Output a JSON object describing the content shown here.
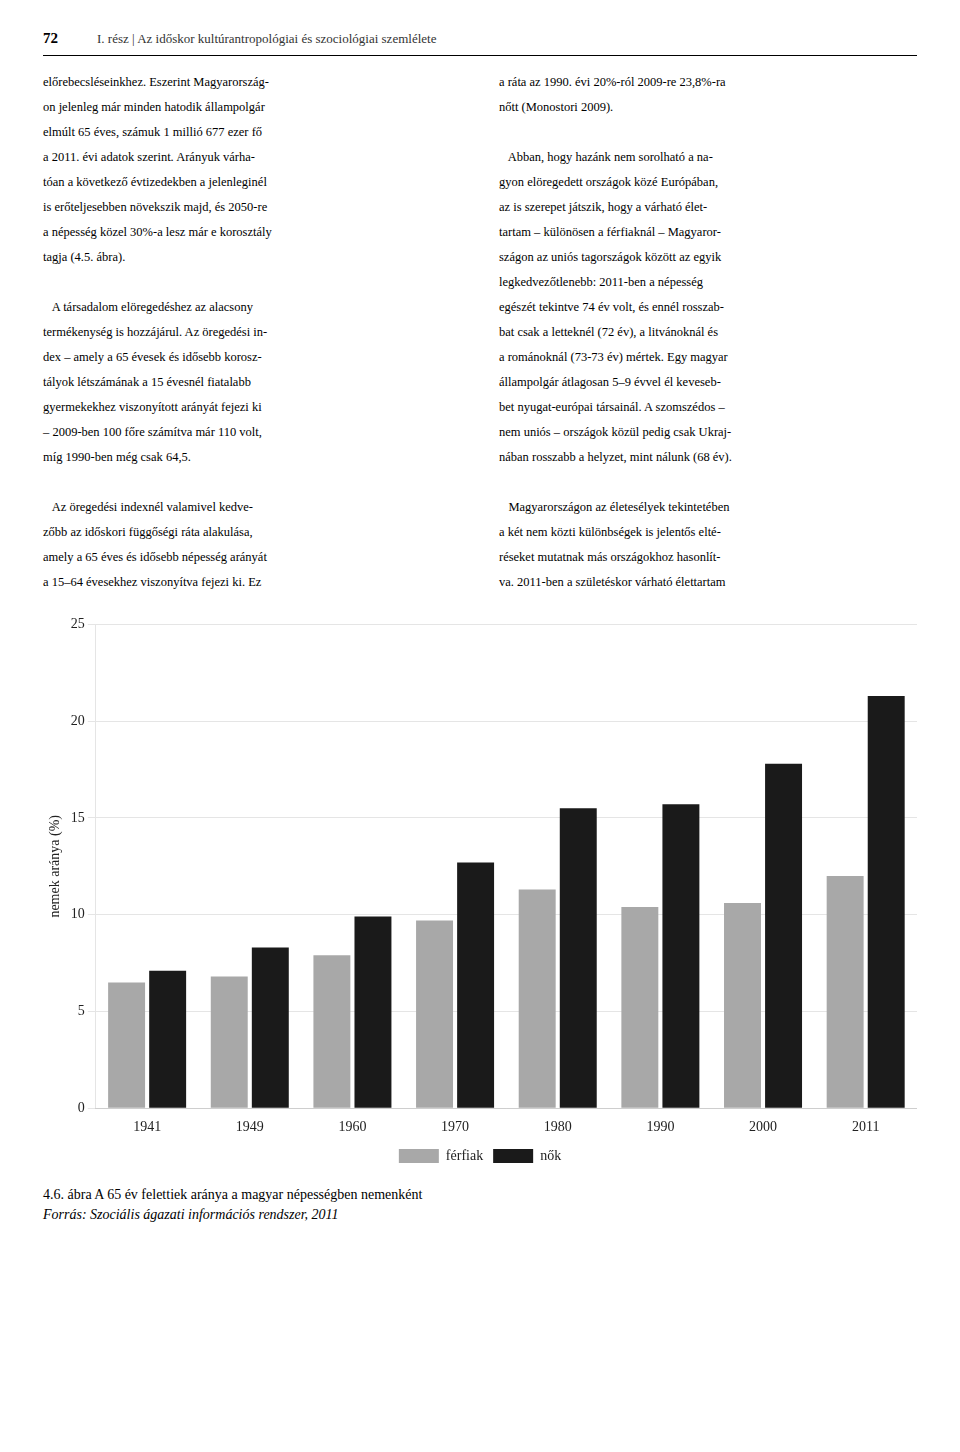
{
  "chart_data": {
    "type": "bar",
    "title": "4.6. ábra A 65 év felettiek aránya a magyar népességben nemenként",
    "subtitle": "Forrás: Szociális ágazati információs rendszer, 2011",
    "categories": [
      "1941",
      "1949",
      "1960",
      "1970",
      "1980",
      "1990",
      "2000",
      "2011"
    ],
    "series": [
      {
        "name": "férfiak",
        "color": "#a8a8a8",
        "values": [
          6.5,
          6.8,
          7.9,
          9.7,
          11.3,
          10.4,
          10.6,
          12.0
        ]
      },
      {
        "name": "nők",
        "color": "#1a1a1a",
        "values": [
          7.1,
          8.3,
          9.9,
          12.7,
          15.5,
          15.7,
          17.8,
          21.3
        ]
      }
    ],
    "ylabel": "nemek aránya (%)",
    "ylim": [
      0,
      25
    ],
    "yticks": [
      0,
      5,
      10,
      15,
      20,
      25
    ],
    "grid": true,
    "legend": "bottom",
    "annotations": [
      "72",
      "I. rész  |  Az időskor kultúrantropológiai és szociológiai szemlélete",
      "előrebecsléseinkhez. Eszerint Magyarország-",
      "on jelenleg már minden hatodik állampolgár",
      "elmúlt 65 éves, számuk 1 millió 677 ezer fő",
      "a 2011. évi adatok szerint. Arányuk várha-",
      "tóan a következő évtizedekben a jelenleginél",
      "is erőteljesebben növekszik majd, és 2050-re",
      "a népesség közel 30%-a lesz már e korosztály",
      "tagja (4.5. ábra).",
      "   A társadalom elöregedéshez az alacsony",
      "termékenység is hozzájárul. Az öregedési in-",
      "dex – amely a 65 évesek és idősebb korosz-",
      "tályok létszámának a 15 évesnél fiatalabb",
      "gyermekekhez viszonyított arányát fejezi ki",
      "– 2009-ben 100 főre számítva már 110 volt,",
      "míg 1990-ben még csak 64,5.",
      "   Az öregedési indexnél valamivel kedve-",
      "zőbb az időskori függőségi ráta alakulása,",
      "amely a 65 éves és idősebb népesség arányát",
      "a 15–64 évesekhez viszonyítva fejezi ki. Ez",
      "a ráta az 1990. évi 20%-ról 2009-re 23,8%-ra",
      "nőtt (Monostori 2009).",
      "   Abban, hogy hazánk nem sorolható a na-",
      "gyon elöregedett országok közé Európában,",
      "az is szerepet játszik, hogy a várható élet-",
      "tartam – különösen a férfiaknál – Magyaror-",
      "szágon az uniós tagországok között az egyik",
      "legkedvezőtlenebb: 2011-ben a népesség",
      "egészét tekintve 74 év volt, és ennél rosszab-",
      "bat csak a letteknél (72 év), a litvánoknál és",
      "a románoknál (73-73 év) mértek. Egy magyar",
      "állampolgár átlagosan 5–9 évvel él keveseb-",
      "bet nyugat-európai társainál. A szomszédos –",
      "nem uniós – országok közül pedig csak Ukraj-",
      "nában rosszabb a helyzet, mint nálunk (68 év).",
      "   Magyarországon az életesélyek tekintetében",
      "a két nem közti különbségek is jelentős elté-",
      "réseket mutatnak más országokhoz hasonlít-",
      "va. 2011-ben a születéskor várható élettartam"
    ]
  }
}
